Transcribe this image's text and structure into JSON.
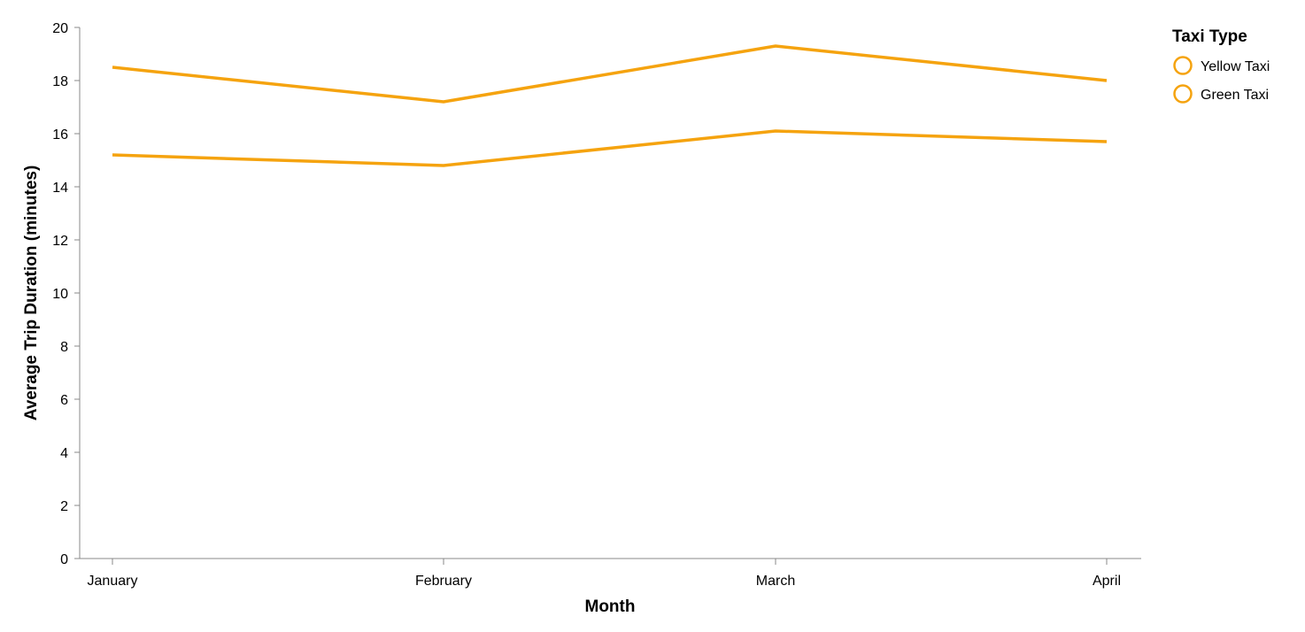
{
  "chart_data": {
    "type": "line",
    "categories": [
      "January",
      "February",
      "March",
      "April"
    ],
    "series": [
      {
        "name": "Yellow Taxi",
        "values": [
          18.5,
          17.2,
          19.3,
          18.0
        ]
      },
      {
        "name": "Green Taxi",
        "values": [
          15.2,
          14.8,
          16.1,
          15.7
        ]
      }
    ],
    "xlabel": "Month",
    "ylabel": "Average Trip Duration (minutes)",
    "ylim": [
      0,
      20
    ],
    "yticks": [
      "0",
      "2",
      "4",
      "6",
      "8",
      "10",
      "12",
      "14",
      "16",
      "18",
      "20"
    ],
    "grid": false,
    "legend": {
      "title": "Taxi Type",
      "placement": "top-right"
    },
    "line_color": "#f5a30f",
    "axis_color": "#888888"
  }
}
